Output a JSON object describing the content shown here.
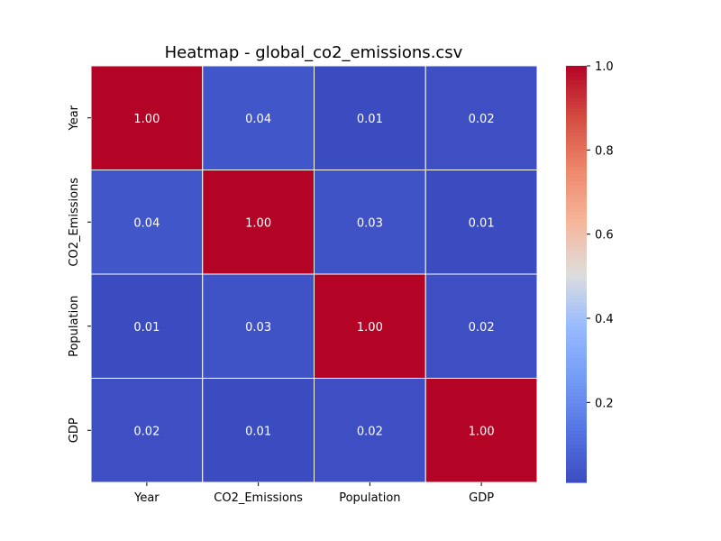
{
  "chart_data": {
    "type": "heatmap",
    "title": "Heatmap - global_co2_emissions.csv",
    "x_categories": [
      "Year",
      "CO2_Emissions",
      "Population",
      "GDP"
    ],
    "y_categories": [
      "Year",
      "CO2_Emissions",
      "Population",
      "GDP"
    ],
    "values": [
      [
        1.0,
        0.04,
        0.01,
        0.02
      ],
      [
        0.04,
        1.0,
        0.03,
        0.01
      ],
      [
        0.01,
        0.03,
        1.0,
        0.02
      ],
      [
        0.02,
        0.01,
        0.02,
        1.0
      ]
    ],
    "value_labels": [
      [
        "1.00",
        "0.04",
        "0.01",
        "0.02"
      ],
      [
        "0.04",
        "1.00",
        "0.03",
        "0.01"
      ],
      [
        "0.01",
        "0.03",
        "1.00",
        "0.02"
      ],
      [
        "0.02",
        "0.01",
        "0.02",
        "1.00"
      ]
    ],
    "colormap": "coolwarm",
    "colorbar": {
      "min": 0.01,
      "max": 1.0,
      "ticks": [
        0.2,
        0.4,
        0.6,
        0.8,
        1.0
      ],
      "tick_labels": [
        "0.2",
        "0.4",
        "0.6",
        "0.8",
        "1.0"
      ]
    },
    "cell_text_color": "#ffffff",
    "cell_border_color": "#ffffff"
  }
}
